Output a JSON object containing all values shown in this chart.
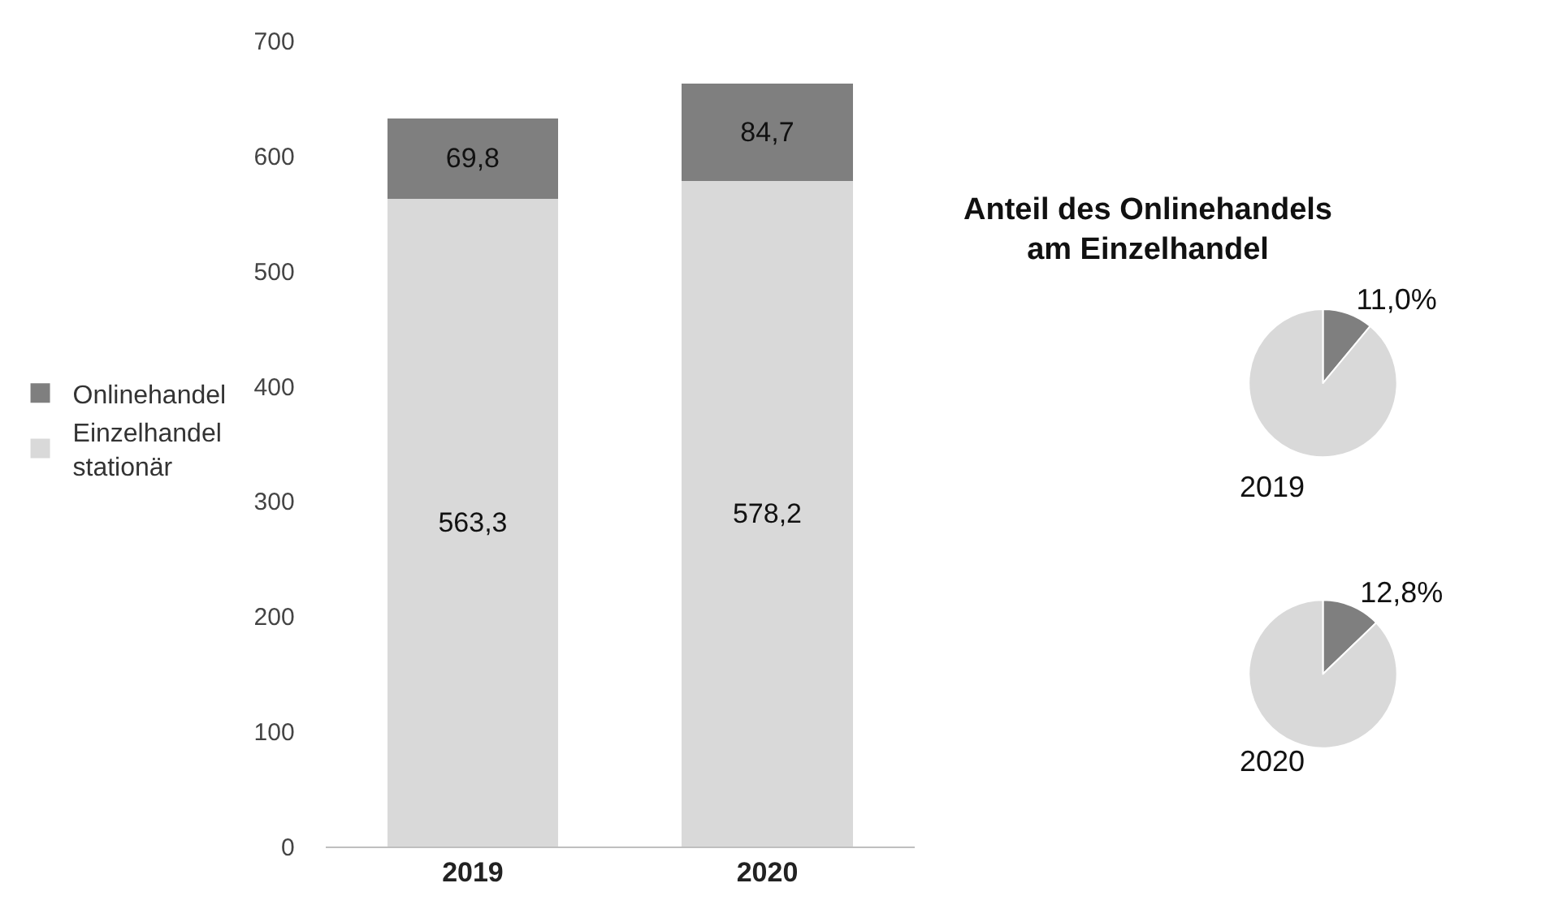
{
  "chart_data": [
    {
      "type": "bar",
      "stacked": true,
      "categories": [
        "2019",
        "2020"
      ],
      "ylim": [
        0,
        700
      ],
      "yticks": [
        0,
        100,
        200,
        300,
        400,
        500,
        600,
        700
      ],
      "legend": "left",
      "series": [
        {
          "name": "Einzelhandel stationär",
          "color": "#d9d9d9",
          "values": [
            563.3,
            578.2
          ],
          "value_labels": [
            "563,3",
            "578,2"
          ]
        },
        {
          "name": "Onlinehandel",
          "color": "#7f7f7f",
          "values": [
            69.8,
            84.7
          ],
          "value_labels": [
            "69,8",
            "84,7"
          ]
        }
      ]
    },
    {
      "type": "pie",
      "title": "Anteil des Onlinehandels am Einzelhandel",
      "xlabel": "2019",
      "categories": [
        null,
        null
      ],
      "values": [
        11.0,
        89.0
      ],
      "colors": [
        "#7f7f7f",
        "#d9d9d9"
      ],
      "value_labels": [
        "11,0%",
        null
      ]
    },
    {
      "type": "pie",
      "xlabel": "2020",
      "categories": [
        null,
        null
      ],
      "values": [
        12.8,
        87.2
      ],
      "colors": [
        "#7f7f7f",
        "#d9d9d9"
      ],
      "value_labels": [
        "12,8%",
        null
      ]
    }
  ]
}
